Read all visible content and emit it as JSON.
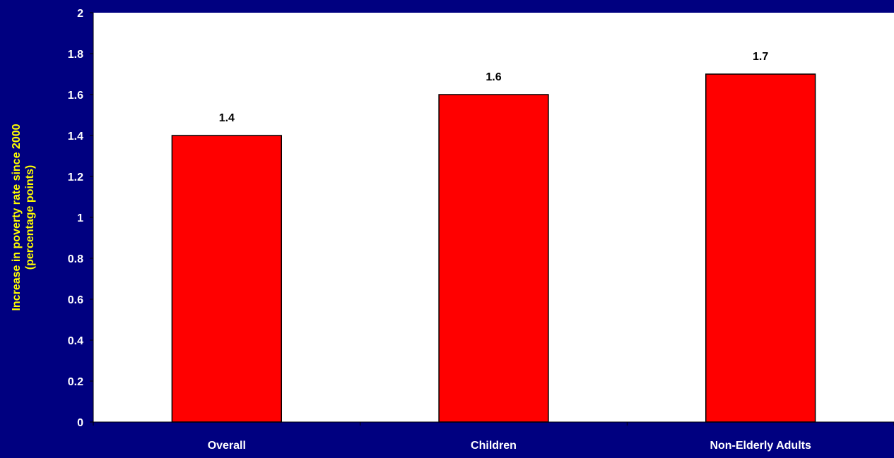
{
  "chart_data": {
    "type": "bar",
    "title": "",
    "xlabel": "",
    "ylabel": "Increase in poverty rate since 2000 (percentage points)",
    "ylabel_lines": [
      "Increase in poverty rate since 2000",
      "(percentage points)"
    ],
    "categories": [
      "Overall",
      "Children",
      "Non-Elderly Adults"
    ],
    "values": [
      1.4,
      1.6,
      1.7
    ],
    "data_labels": [
      "1.4",
      "1.6",
      "1.7"
    ],
    "ylim": [
      0,
      2
    ],
    "yticks": [
      0,
      0.2,
      0.4,
      0.6,
      0.8,
      1,
      1.2,
      1.4,
      1.6,
      1.8,
      2
    ],
    "ytick_labels": [
      "0",
      "0.2",
      "0.4",
      "0.6",
      "0.8",
      "1",
      "1.2",
      "1.4",
      "1.6",
      "1.8",
      "2"
    ],
    "grid": false,
    "legend": "none"
  },
  "colors": {
    "background": "#000080",
    "plot_area": "#ffffff",
    "bar_fill": "#ff0000",
    "bar_stroke": "#000000",
    "tick_text": "#ffffff",
    "ylabel_text": "#ffff00",
    "data_label_text": "#000000"
  }
}
